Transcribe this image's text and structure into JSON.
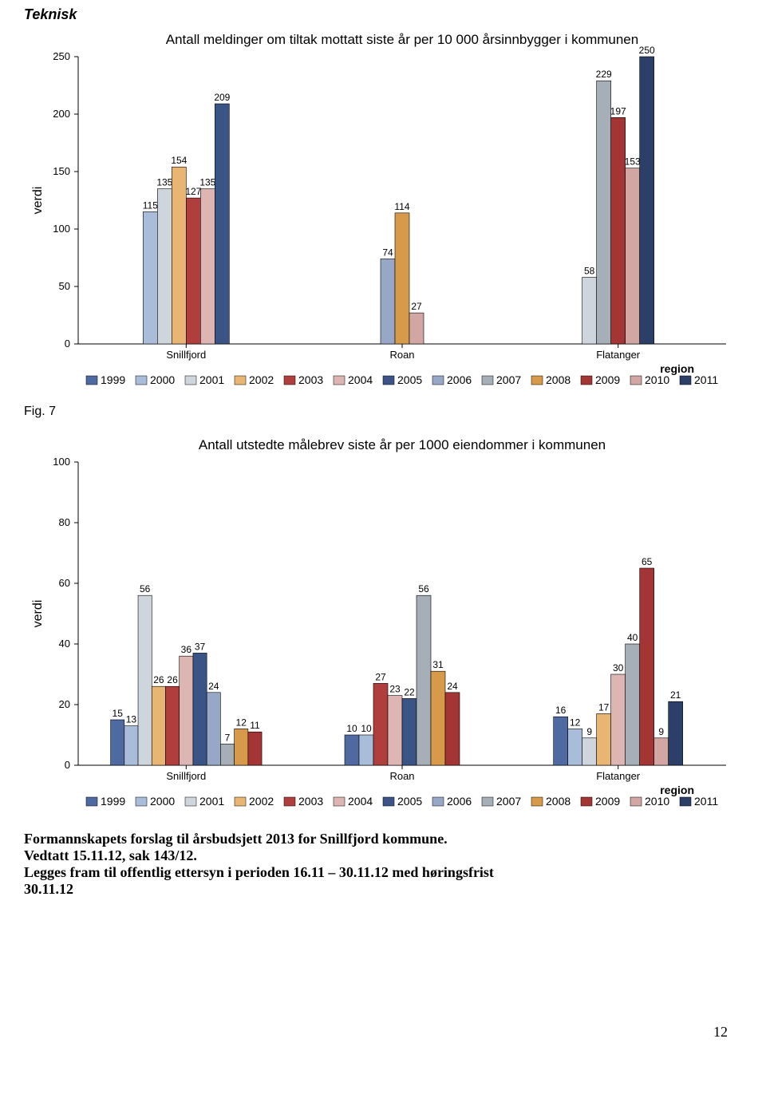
{
  "heading": "Teknisk",
  "fig7_caption": "Fig. 7",
  "footer_line1": "Formannskapets forslag til årsbudsjett 2013 for Snillfjord kommune.",
  "footer_line2": "Vedtatt 15.11.12, sak 143/12.",
  "footer_line3": "Legges fram til offentlig ettersyn i perioden 16.11 – 30.11.12 med høringsfrist",
  "footer_line4": "30.11.12",
  "page_number": "12",
  "year_labels": [
    "1999",
    "2000",
    "2001",
    "2002",
    "2003",
    "2004",
    "2005",
    "2006",
    "2007",
    "2008",
    "2009",
    "2010",
    "2011"
  ],
  "year_colors": [
    "#4e6aa0",
    "#a9bcd9",
    "#cfd5dc",
    "#e9b572",
    "#b03e3d",
    "#ddb6b3",
    "#3a5485",
    "#97a8c6",
    "#a6aeb7",
    "#d79a4a",
    "#a33534",
    "#d1a6a3",
    "#2b3f68"
  ],
  "region_label": "region",
  "y_axis_label": "verdi",
  "chart1": {
    "title": "Antall meldinger om tiltak mottatt siste år per 10 000 årsinnbygger i kommunen",
    "y_max": 250,
    "y_ticks": [
      0,
      50,
      100,
      150,
      200,
      250
    ],
    "regions": [
      "Snillfjord",
      "Roan",
      "Flatanger"
    ],
    "data": [
      [
        null,
        115,
        135,
        154,
        127,
        135,
        209,
        null,
        null,
        null,
        null,
        null,
        null
      ],
      [
        null,
        null,
        null,
        null,
        null,
        null,
        null,
        74,
        null,
        114,
        null,
        27,
        null
      ],
      [
        null,
        null,
        58,
        null,
        null,
        null,
        null,
        null,
        229,
        null,
        197,
        153,
        250
      ]
    ]
  },
  "chart2": {
    "title": "Antall utstedte målebrev siste år per 1000 eiendommer i kommunen",
    "y_max": 100,
    "y_ticks": [
      0,
      20,
      40,
      60,
      80,
      100
    ],
    "regions": [
      "Snillfjord",
      "Roan",
      "Flatanger"
    ],
    "data": [
      [
        15,
        13,
        56,
        26,
        26,
        36,
        37,
        24,
        7,
        12,
        11,
        null,
        null
      ],
      [
        10,
        10,
        null,
        null,
        27,
        23,
        22,
        null,
        56,
        31,
        24,
        null,
        null
      ],
      [
        16,
        12,
        9,
        17,
        null,
        30,
        null,
        null,
        40,
        null,
        65,
        9,
        21
      ]
    ]
  },
  "chart_style": {
    "plot_bg": "#ffffff",
    "axis_color": "#000000",
    "axis_width": 1
  }
}
